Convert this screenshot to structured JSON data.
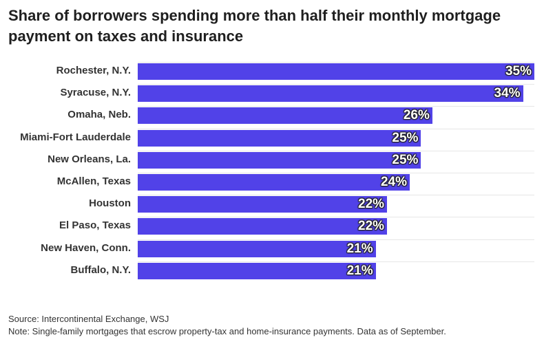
{
  "title": "Share of borrowers spending more than half their monthly mortgage payment on taxes and insurance",
  "chart_data": {
    "type": "bar",
    "orientation": "horizontal",
    "title": "Share of borrowers spending more than half their monthly mortgage payment on taxes and insurance",
    "categories": [
      "Rochester, N.Y.",
      "Syracuse, N.Y.",
      "Omaha, Neb.",
      "Miami-Fort Lauderdale",
      "New Orleans, La.",
      "McAllen, Texas",
      "Houston",
      "El Paso, Texas",
      "New Haven, Conn.",
      "Buffalo, N.Y."
    ],
    "values": [
      35,
      34,
      26,
      25,
      25,
      24,
      22,
      22,
      21,
      21
    ],
    "value_labels": [
      "35%",
      "34%",
      "26%",
      "25%",
      "25%",
      "24%",
      "22%",
      "22%",
      "21%",
      "21%"
    ],
    "unit": "%",
    "xlim": [
      0,
      35
    ],
    "xlabel": "",
    "ylabel": "",
    "bar_color": "#5142e8"
  },
  "source": "Source: Intercontinental Exchange, WSJ",
  "note": "Note: Single-family mortgages that escrow property-tax and home-insurance payments. Data as of September."
}
